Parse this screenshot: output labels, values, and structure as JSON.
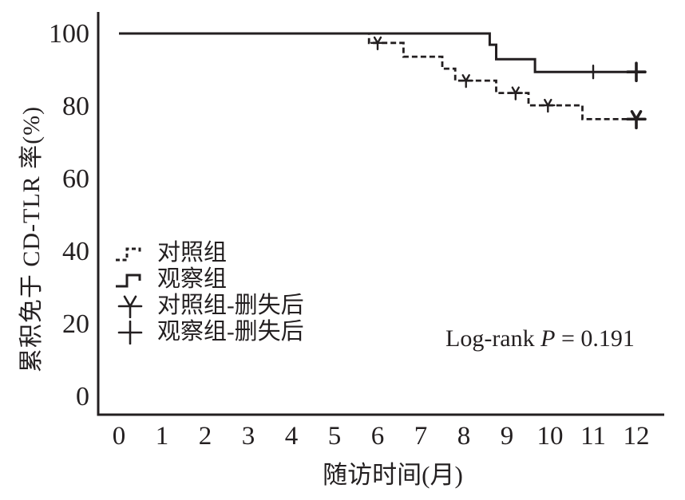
{
  "figure": {
    "background": "#ffffff",
    "ink_color": "#231f20"
  },
  "chart_data": {
    "type": "line",
    "subtype": "kaplan-meier-step",
    "title": "",
    "xlabel": "随访时间(月)",
    "ylabel": "累积免于 CD-TLR 率(%)",
    "xlim": [
      0,
      12.2
    ],
    "ylim": [
      0,
      104
    ],
    "xticks": [
      0,
      1,
      2,
      3,
      4,
      5,
      6,
      7,
      8,
      9,
      10,
      11,
      12
    ],
    "yticks": [
      0,
      20,
      40,
      60,
      80,
      100
    ],
    "grid": false,
    "legend_position": "center-left",
    "annotation": {
      "prefix": "Log-rank ",
      "p": "P",
      "suffix": " = 0.191"
    },
    "series": [
      {
        "name": "对照组",
        "line_style": "dashed",
        "color": "#231f20",
        "steps": [
          [
            0,
            100
          ],
          [
            5.8,
            97.4
          ],
          [
            6.6,
            93.6
          ],
          [
            7.5,
            90.3
          ],
          [
            7.8,
            87.0
          ],
          [
            8.75,
            83.6
          ],
          [
            9.5,
            80.2
          ],
          [
            10.75,
            76.4
          ]
        ],
        "end_x": 12.05
      },
      {
        "name": "观察组",
        "line_style": "solid",
        "color": "#231f20",
        "steps": [
          [
            0,
            100
          ],
          [
            8.6,
            96.9
          ],
          [
            8.75,
            92.9
          ],
          [
            9.65,
            89.4
          ]
        ],
        "end_x": 12.05
      }
    ],
    "censor_series": [
      {
        "name": "对照组-删失后",
        "marker": "star",
        "parent": "对照组",
        "points": [
          [
            6.0,
            97.4,
            false
          ],
          [
            8.05,
            87.0,
            false
          ],
          [
            9.2,
            83.6,
            false
          ],
          [
            9.95,
            80.2,
            false
          ],
          [
            12.0,
            76.4,
            true
          ]
        ]
      },
      {
        "name": "观察组-删失后",
        "marker": "plus",
        "parent": "观察组",
        "points": [
          [
            11.0,
            89.4,
            false
          ],
          [
            12.0,
            89.4,
            true
          ]
        ]
      }
    ],
    "legend": [
      {
        "label": "对照组",
        "symbol": "dashed-step"
      },
      {
        "label": "观察组",
        "symbol": "solid-step"
      },
      {
        "label": "对照组-删失后",
        "symbol": "star"
      },
      {
        "label": "观察组-删失后",
        "symbol": "plus"
      }
    ]
  }
}
